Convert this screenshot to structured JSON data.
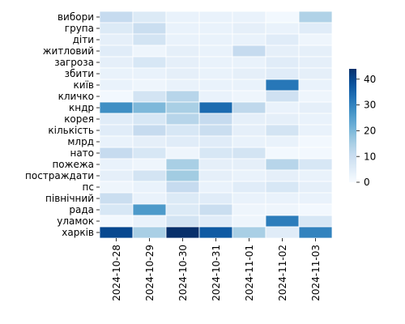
{
  "chart_data": {
    "type": "heatmap",
    "title": "",
    "xlabel": "",
    "ylabel": "",
    "rows": [
      "вибори",
      "група",
      "діти",
      "житловий",
      "загроза",
      "збити",
      "київ",
      "кличко",
      "кндр",
      "корея",
      "кількість",
      "млрд",
      "нато",
      "пожежа",
      "постраждати",
      "пс",
      "північний",
      "рада",
      "уламок",
      "харків"
    ],
    "columns": [
      "2024-10-28",
      "2024-10-29",
      "2024-10-30",
      "2024-10-31",
      "2024-11-01",
      "2024-11-02",
      "2024-11-03"
    ],
    "values": [
      [
        11,
        6,
        3,
        3,
        3,
        1,
        14
      ],
      [
        6,
        10,
        3,
        3,
        4,
        3,
        5
      ],
      [
        4,
        8,
        3,
        3,
        3,
        5,
        2
      ],
      [
        5,
        2,
        4,
        3,
        11,
        4,
        4
      ],
      [
        4,
        7,
        4,
        3,
        3,
        5,
        4
      ],
      [
        3,
        3,
        4,
        3,
        4,
        5,
        4
      ],
      [
        3,
        2,
        3,
        3,
        3,
        32,
        3
      ],
      [
        1,
        8,
        13,
        3,
        2,
        9,
        2
      ],
      [
        28,
        20,
        15,
        34,
        12,
        3,
        4
      ],
      [
        5,
        7,
        13,
        11,
        4,
        4,
        3
      ],
      [
        5,
        11,
        7,
        10,
        4,
        8,
        3
      ],
      [
        3,
        4,
        5,
        5,
        3,
        3,
        1
      ],
      [
        11,
        7,
        2,
        7,
        8,
        1,
        1
      ],
      [
        3,
        2,
        15,
        4,
        4,
        13,
        7
      ],
      [
        4,
        8,
        16,
        4,
        3,
        4,
        3
      ],
      [
        2,
        3,
        11,
        3,
        5,
        7,
        4
      ],
      [
        10,
        3,
        6,
        5,
        3,
        3,
        3
      ],
      [
        7,
        26,
        6,
        10,
        2,
        2,
        1
      ],
      [
        1,
        3,
        8,
        5,
        2,
        31,
        7
      ],
      [
        40,
        15,
        44,
        37,
        15,
        5,
        30
      ]
    ],
    "colorbar": {
      "ticks": [
        0,
        10,
        20,
        30,
        40
      ],
      "range": [
        0,
        44
      ],
      "colormap": "Blues"
    },
    "grid": false,
    "cell_borders": "#ffffff"
  }
}
